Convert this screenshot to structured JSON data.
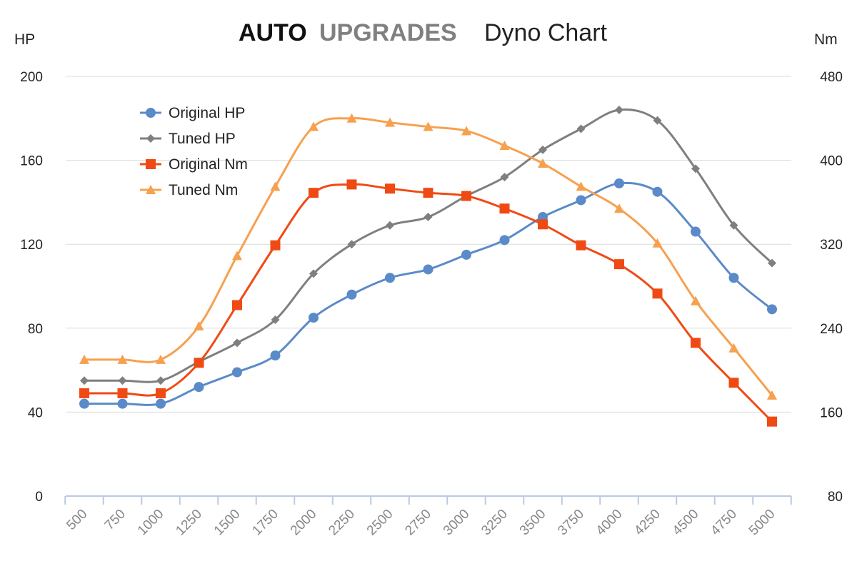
{
  "chart_data": {
    "type": "line",
    "title": {
      "brand_part1": "AUTO",
      "brand_part2": "UPGRADES",
      "main": "Dyno Chart"
    },
    "left_axis": {
      "unit": "HP",
      "ticks": [
        0,
        40,
        80,
        120,
        160,
        200
      ],
      "range": [
        0,
        200
      ]
    },
    "right_axis": {
      "unit": "Nm",
      "ticks": [
        80,
        160,
        240,
        320,
        400,
        480
      ],
      "range": [
        80,
        480
      ]
    },
    "categories": [
      "500",
      "750",
      "1000",
      "1250",
      "1500",
      "1750",
      "2000",
      "2250",
      "2500",
      "2750",
      "3000",
      "3250",
      "3500",
      "3750",
      "4000",
      "4250",
      "4500",
      "4750",
      "5000"
    ],
    "grid": true,
    "legend_position": "top-left",
    "series": [
      {
        "name": "Original HP",
        "axis": "left",
        "color": "#5b8ac8",
        "marker": "circle",
        "values": [
          44,
          44,
          44,
          52,
          59,
          67,
          85,
          96,
          104,
          108,
          115,
          122,
          133,
          141,
          149,
          145,
          126,
          104,
          89
        ]
      },
      {
        "name": "Tuned HP",
        "axis": "left",
        "color": "#7f7f7f",
        "marker": "diamond",
        "values": [
          55,
          55,
          55,
          64,
          73,
          84,
          106,
          120,
          129,
          133,
          143,
          152,
          165,
          175,
          184,
          179,
          156,
          129,
          111
        ]
      },
      {
        "name": "Original Nm",
        "axis": "right",
        "color": "#f04a14",
        "marker": "square",
        "values": [
          178,
          178,
          178,
          207,
          262,
          319,
          369,
          377,
          373,
          369,
          366,
          354,
          339,
          319,
          301,
          273,
          226,
          188,
          151
        ]
      },
      {
        "name": "Tuned Nm",
        "axis": "right",
        "color": "#f7a04e",
        "marker": "triangle",
        "values": [
          210,
          210,
          210,
          242,
          309,
          375,
          432,
          440,
          436,
          432,
          428,
          414,
          397,
          375,
          354,
          321,
          266,
          221,
          176
        ]
      }
    ]
  }
}
